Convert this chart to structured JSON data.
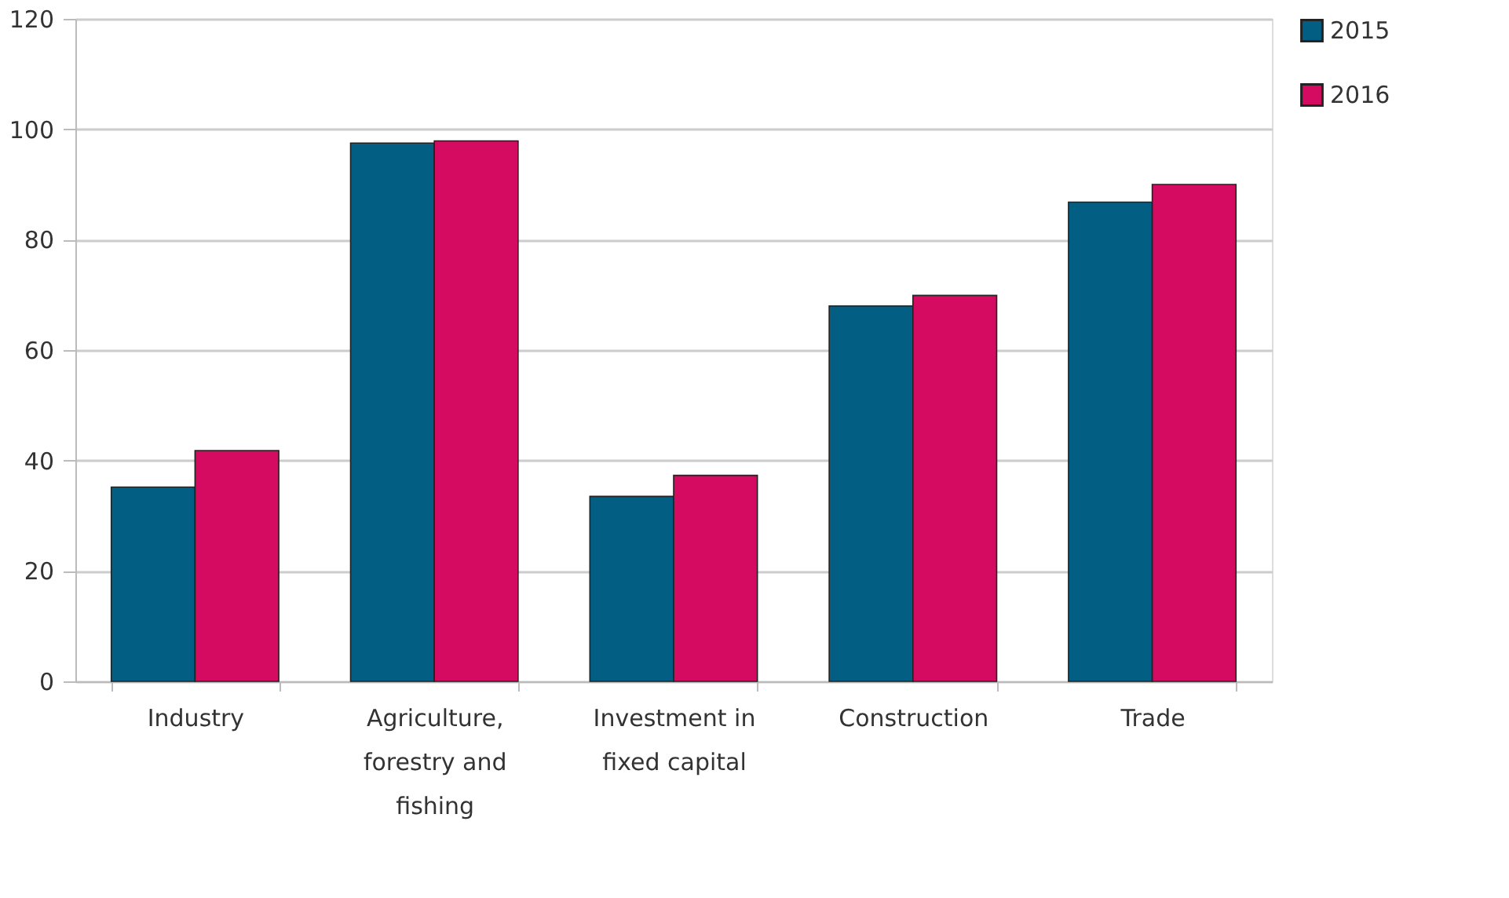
{
  "chart_data": {
    "type": "bar",
    "categories": [
      "Industry",
      "Agriculture, forestry and fishing",
      "Investment in fixed capital",
      "Construction",
      "Trade"
    ],
    "series": [
      {
        "name": "2015",
        "color": "#035e83",
        "values": [
          35.2,
          97.5,
          33.5,
          68.0,
          86.8
        ]
      },
      {
        "name": "2016",
        "color": "#d50a61",
        "values": [
          41.8,
          97.9,
          37.3,
          69.9,
          90.0
        ]
      }
    ],
    "ylim": [
      0,
      120
    ],
    "yticks": [
      0,
      20,
      40,
      60,
      80,
      100,
      120
    ],
    "grid": "y",
    "legend": "right"
  }
}
